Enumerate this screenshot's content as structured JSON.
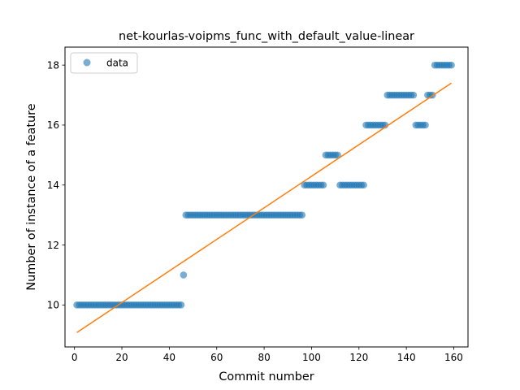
{
  "chart_data": {
    "type": "scatter",
    "title": "net-kourlas-voipms_func_with_default_value-linear",
    "xlabel": "Commit number",
    "ylabel": "Number of instance of a feature",
    "xlim": [
      -4,
      166
    ],
    "ylim": [
      8.6,
      18.6
    ],
    "xticks": [
      "0",
      "20",
      "40",
      "60",
      "80",
      "100",
      "120",
      "140",
      "160"
    ],
    "xtick_values": [
      0,
      20,
      40,
      60,
      80,
      100,
      120,
      140,
      160
    ],
    "yticks": [
      "10",
      "12",
      "14",
      "16",
      "18"
    ],
    "ytick_values": [
      10,
      12,
      14,
      16,
      18
    ],
    "grid": false,
    "legend": {
      "placement": "top-left",
      "entries": [
        "data"
      ]
    },
    "colors": {
      "data": "#1f77b4",
      "fit": "#ff7f0e"
    },
    "series": [
      {
        "name": "data",
        "kind": "points",
        "segments": [
          {
            "x_from": 1,
            "x_to": 45,
            "y": 10
          },
          {
            "x_from": 46,
            "x_to": 46,
            "y": 11
          },
          {
            "x_from": 47,
            "x_to": 96,
            "y": 13
          },
          {
            "x_from": 97,
            "x_to": 105,
            "y": 14
          },
          {
            "x_from": 106,
            "x_to": 111,
            "y": 15
          },
          {
            "x_from": 112,
            "x_to": 122,
            "y": 14
          },
          {
            "x_from": 123,
            "x_to": 131,
            "y": 16
          },
          {
            "x_from": 132,
            "x_to": 143,
            "y": 17
          },
          {
            "x_from": 144,
            "x_to": 148,
            "y": 16
          },
          {
            "x_from": 149,
            "x_to": 151,
            "y": 17
          },
          {
            "x_from": 152,
            "x_to": 159,
            "y": 18
          }
        ]
      },
      {
        "kind": "line",
        "x": [
          1,
          159
        ],
        "y": [
          9.08,
          17.4
        ]
      }
    ]
  }
}
